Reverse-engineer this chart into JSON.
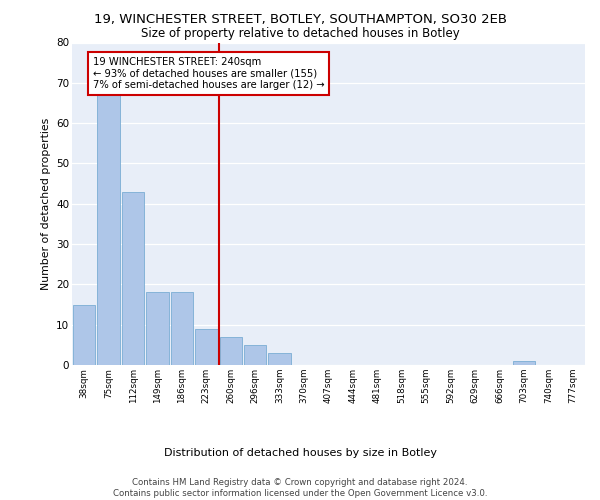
{
  "title1": "19, WINCHESTER STREET, BOTLEY, SOUTHAMPTON, SO30 2EB",
  "title2": "Size of property relative to detached houses in Botley",
  "xlabel": "Distribution of detached houses by size in Botley",
  "ylabel": "Number of detached properties",
  "bar_labels": [
    "38sqm",
    "75sqm",
    "112sqm",
    "149sqm",
    "186sqm",
    "223sqm",
    "260sqm",
    "296sqm",
    "333sqm",
    "370sqm",
    "407sqm",
    "444sqm",
    "481sqm",
    "518sqm",
    "555sqm",
    "592sqm",
    "629sqm",
    "666sqm",
    "703sqm",
    "740sqm",
    "777sqm"
  ],
  "bar_values": [
    15,
    67,
    43,
    18,
    18,
    9,
    7,
    5,
    3,
    0,
    0,
    0,
    0,
    0,
    0,
    0,
    0,
    0,
    1,
    0,
    0
  ],
  "bar_color": "#aec6e8",
  "bar_edge_color": "#7aadd4",
  "vline_x_idx": 6,
  "vline_color": "#cc0000",
  "annotation_text": "19 WINCHESTER STREET: 240sqm\n← 93% of detached houses are smaller (155)\n7% of semi-detached houses are larger (12) →",
  "annotation_box_color": "#ffffff",
  "annotation_box_edge": "#cc0000",
  "ylim": [
    0,
    80
  ],
  "yticks": [
    0,
    10,
    20,
    30,
    40,
    50,
    60,
    70,
    80
  ],
  "bg_color": "#e8eef8",
  "footer": "Contains HM Land Registry data © Crown copyright and database right 2024.\nContains public sector information licensed under the Open Government Licence v3.0."
}
